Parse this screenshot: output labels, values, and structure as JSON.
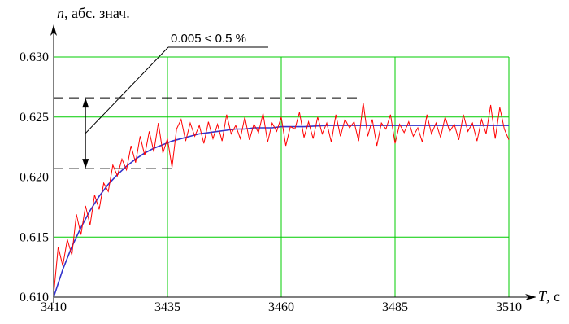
{
  "chart_data": {
    "type": "line",
    "ylabel_symbol": "n",
    "ylabel_rest": ", абс. знач.",
    "xlabel_symbol": "T",
    "xlabel_rest": ", c",
    "xlim": [
      3410,
      3510
    ],
    "ylim": [
      0.61,
      0.63
    ],
    "grid": true,
    "x_ticks": [
      {
        "value": 3410,
        "label": "3410"
      },
      {
        "value": 3435,
        "label": "3435"
      },
      {
        "value": 3460,
        "label": "3460"
      },
      {
        "value": 3485,
        "label": "3485"
      },
      {
        "value": 3510,
        "label": "3510"
      }
    ],
    "y_ticks": [
      {
        "value": 0.61,
        "label": "0.610"
      },
      {
        "value": 0.615,
        "label": "0.615"
      },
      {
        "value": 0.62,
        "label": "0.620"
      },
      {
        "value": 0.625,
        "label": "0.625"
      },
      {
        "value": 0.63,
        "label": "0.630"
      }
    ],
    "colors": {
      "grid": "#00cc00",
      "noisy": "#ff0000",
      "smooth": "#3333cc",
      "axis": "#000000"
    },
    "annotation": {
      "text": "0.005 < 0.5 %",
      "upper_level": 0.6266,
      "lower_level": 0.6207,
      "dash_x_start": 3410,
      "upper_dash_x_end": 3478,
      "lower_dash_x_end": 3436,
      "arrow_x": 3417
    },
    "series": [
      {
        "style": "smooth",
        "x": [
          3410,
          3412,
          3414,
          3416,
          3418,
          3420,
          3422,
          3424,
          3426,
          3428,
          3430,
          3432,
          3434,
          3436,
          3438,
          3440,
          3442,
          3444,
          3446,
          3448,
          3450,
          3452,
          3454,
          3456,
          3458,
          3460,
          3465,
          3470,
          3475,
          3480,
          3485,
          3490,
          3495,
          3500,
          3505,
          3510
        ],
        "y": [
          0.61,
          0.6123,
          0.6142,
          0.6158,
          0.6172,
          0.6184,
          0.6194,
          0.6202,
          0.6209,
          0.6215,
          0.622,
          0.6224,
          0.6227,
          0.623,
          0.6232,
          0.6234,
          0.6236,
          0.6237,
          0.6238,
          0.6239,
          0.624,
          0.624,
          0.6241,
          0.6241,
          0.6241,
          0.6242,
          0.6242,
          0.6243,
          0.6243,
          0.6243,
          0.6243,
          0.6243,
          0.6243,
          0.6243,
          0.6243,
          0.6243
        ]
      },
      {
        "style": "noisy",
        "x": [
          3410,
          3411,
          3412,
          3413,
          3414,
          3415,
          3416,
          3417,
          3418,
          3419,
          3420,
          3421,
          3422,
          3423,
          3424,
          3425,
          3426,
          3427,
          3428,
          3429,
          3430,
          3431,
          3432,
          3433,
          3434,
          3435,
          3436,
          3437,
          3438,
          3439,
          3440,
          3441,
          3442,
          3443,
          3444,
          3445,
          3446,
          3447,
          3448,
          3449,
          3450,
          3451,
          3452,
          3453,
          3454,
          3455,
          3456,
          3457,
          3458,
          3459,
          3460,
          3461,
          3462,
          3463,
          3464,
          3465,
          3466,
          3467,
          3468,
          3469,
          3470,
          3471,
          3472,
          3473,
          3474,
          3475,
          3476,
          3477,
          3478,
          3479,
          3480,
          3481,
          3482,
          3483,
          3484,
          3485,
          3486,
          3487,
          3488,
          3489,
          3490,
          3491,
          3492,
          3493,
          3494,
          3495,
          3496,
          3497,
          3498,
          3499,
          3500,
          3501,
          3502,
          3503,
          3504,
          3505,
          3506,
          3507,
          3508,
          3509,
          3510
        ],
        "y": [
          0.6102,
          0.6142,
          0.6126,
          0.6148,
          0.6135,
          0.6169,
          0.6152,
          0.6176,
          0.616,
          0.6185,
          0.6173,
          0.6195,
          0.6188,
          0.621,
          0.6201,
          0.6215,
          0.6206,
          0.6226,
          0.6212,
          0.6234,
          0.6218,
          0.6238,
          0.6221,
          0.6245,
          0.622,
          0.6232,
          0.6208,
          0.624,
          0.6248,
          0.623,
          0.6245,
          0.6234,
          0.6243,
          0.6228,
          0.6246,
          0.6232,
          0.6244,
          0.623,
          0.6252,
          0.6236,
          0.6243,
          0.6232,
          0.625,
          0.6231,
          0.6244,
          0.6237,
          0.6253,
          0.6229,
          0.6245,
          0.6238,
          0.625,
          0.6226,
          0.6242,
          0.624,
          0.6254,
          0.6233,
          0.6246,
          0.6232,
          0.625,
          0.6236,
          0.6245,
          0.6229,
          0.6252,
          0.6234,
          0.6248,
          0.6241,
          0.6246,
          0.623,
          0.6262,
          0.6234,
          0.6248,
          0.6226,
          0.6245,
          0.624,
          0.6252,
          0.6228,
          0.6244,
          0.6237,
          0.6246,
          0.6234,
          0.6241,
          0.6229,
          0.6252,
          0.6236,
          0.6245,
          0.6233,
          0.625,
          0.6238,
          0.6244,
          0.6231,
          0.6252,
          0.6238,
          0.6245,
          0.623,
          0.6248,
          0.6236,
          0.626,
          0.6232,
          0.6258,
          0.624,
          0.6231
        ]
      }
    ]
  }
}
